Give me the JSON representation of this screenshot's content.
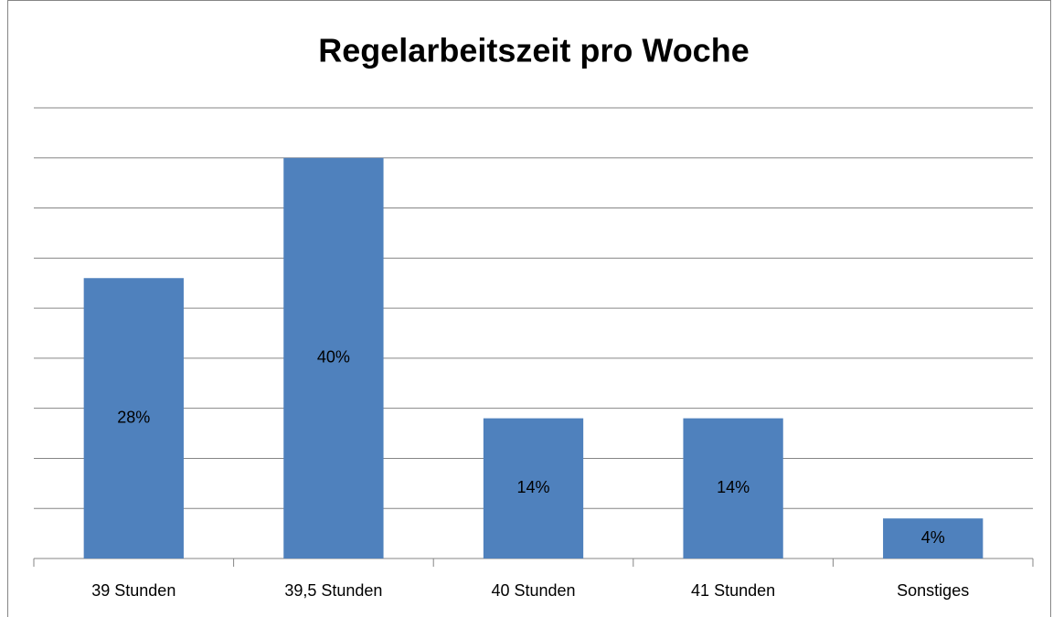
{
  "chart_data": {
    "type": "bar",
    "title": "Regelarbeitszeit pro Woche",
    "categories": [
      "39 Stunden",
      "39,5 Stunden",
      "40 Stunden",
      "41 Stunden",
      "Sonstiges"
    ],
    "values": [
      28,
      40,
      14,
      14,
      4
    ],
    "value_labels": [
      "28%",
      "40%",
      "14%",
      "14%",
      "4%"
    ],
    "color": "#4f81bd",
    "ylim": [
      0,
      45
    ],
    "yticks": [
      0,
      5,
      10,
      15,
      20,
      25,
      30,
      35,
      40,
      45
    ],
    "grid": true
  }
}
